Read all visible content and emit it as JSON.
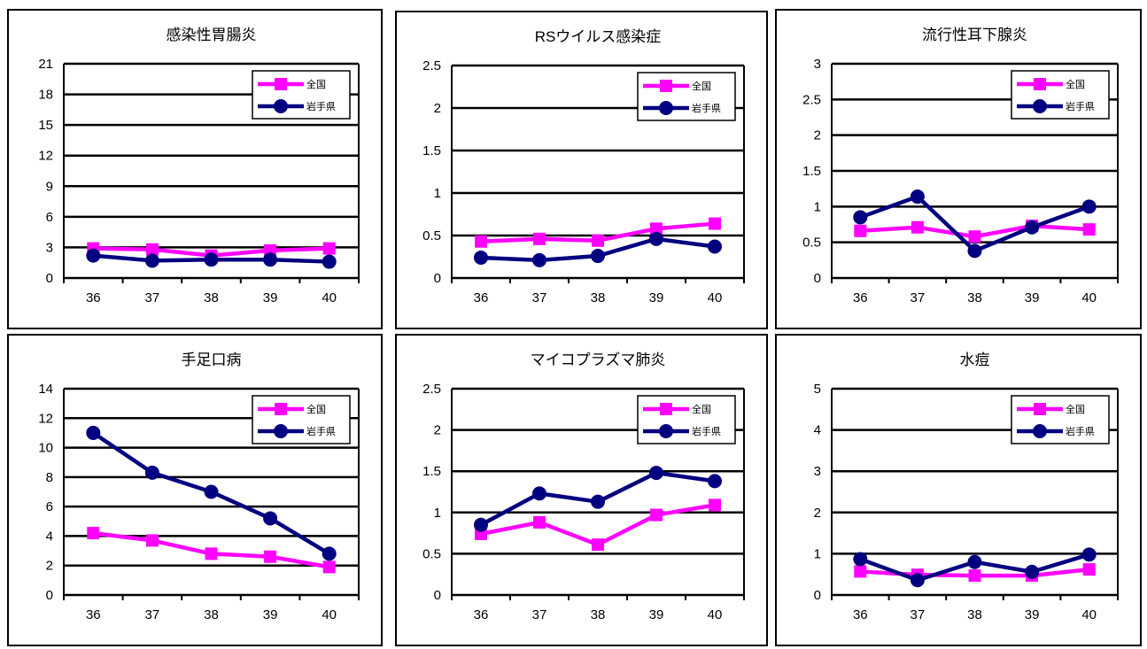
{
  "colors": {
    "national": "#ff00ff",
    "iwate": "#000080",
    "grid": "#000000"
  },
  "legend": {
    "national": "全国",
    "iwate": "岩手県"
  },
  "chart_data": [
    {
      "type": "line",
      "title": "感染性胃腸炎",
      "categories": [
        "36",
        "37",
        "38",
        "39",
        "40"
      ],
      "ylim": [
        0,
        21
      ],
      "yticks": [
        "0",
        "3",
        "6",
        "9",
        "12",
        "15",
        "18",
        "21"
      ],
      "series": [
        {
          "name": "全国",
          "values": [
            2.9,
            2.8,
            2.2,
            2.7,
            2.9
          ]
        },
        {
          "name": "岩手県",
          "values": [
            2.2,
            1.7,
            1.8,
            1.8,
            1.6
          ]
        }
      ]
    },
    {
      "type": "line",
      "title": "RSウイルス感染症",
      "categories": [
        "36",
        "37",
        "38",
        "39",
        "40"
      ],
      "ylim": [
        0,
        2.5
      ],
      "yticks": [
        "0",
        "0.5",
        "1",
        "1.5",
        "2",
        "2.5"
      ],
      "series": [
        {
          "name": "全国",
          "values": [
            0.43,
            0.46,
            0.44,
            0.58,
            0.64
          ]
        },
        {
          "name": "岩手県",
          "values": [
            0.24,
            0.21,
            0.26,
            0.46,
            0.37
          ]
        }
      ]
    },
    {
      "type": "line",
      "title": "流行性耳下腺炎",
      "categories": [
        "36",
        "37",
        "38",
        "39",
        "40"
      ],
      "ylim": [
        0,
        3
      ],
      "yticks": [
        "0",
        "0.5",
        "1",
        "1.5",
        "2",
        "2.5",
        "3"
      ],
      "series": [
        {
          "name": "全国",
          "values": [
            0.66,
            0.71,
            0.58,
            0.73,
            0.68
          ]
        },
        {
          "name": "岩手県",
          "values": [
            0.85,
            1.14,
            0.38,
            0.71,
            1.0
          ]
        }
      ]
    },
    {
      "type": "line",
      "title": "手足口病",
      "categories": [
        "36",
        "37",
        "38",
        "39",
        "40"
      ],
      "ylim": [
        0,
        14
      ],
      "yticks": [
        "0",
        "2",
        "4",
        "6",
        "8",
        "10",
        "12",
        "14"
      ],
      "series": [
        {
          "name": "全国",
          "values": [
            4.2,
            3.7,
            2.8,
            2.6,
            1.9
          ]
        },
        {
          "name": "岩手県",
          "values": [
            11.0,
            8.3,
            7.0,
            5.2,
            2.8
          ]
        }
      ]
    },
    {
      "type": "line",
      "title": "マイコプラズマ肺炎",
      "categories": [
        "36",
        "37",
        "38",
        "39",
        "40"
      ],
      "ylim": [
        0,
        2.5
      ],
      "yticks": [
        "0",
        "0.5",
        "1",
        "1.5",
        "2",
        "2.5"
      ],
      "series": [
        {
          "name": "全国",
          "values": [
            0.74,
            0.88,
            0.61,
            0.97,
            1.09
          ]
        },
        {
          "name": "岩手県",
          "values": [
            0.85,
            1.23,
            1.13,
            1.48,
            1.38
          ]
        }
      ]
    },
    {
      "type": "line",
      "title": "水痘",
      "categories": [
        "36",
        "37",
        "38",
        "39",
        "40"
      ],
      "ylim": [
        0,
        5
      ],
      "yticks": [
        "0",
        "1",
        "2",
        "3",
        "4",
        "5"
      ],
      "series": [
        {
          "name": "全国",
          "values": [
            0.57,
            0.49,
            0.47,
            0.47,
            0.62
          ]
        },
        {
          "name": "岩手県",
          "values": [
            0.87,
            0.36,
            0.8,
            0.56,
            0.98
          ]
        }
      ]
    }
  ]
}
